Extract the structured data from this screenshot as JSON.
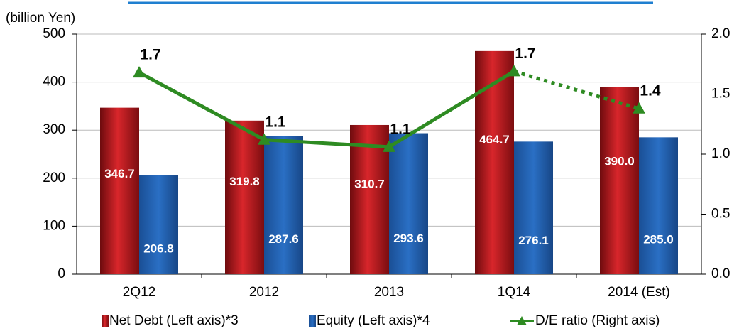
{
  "chart_data": {
    "type": "bar_line",
    "y_axis_label": "(billion Yen)",
    "categories": [
      "2Q12",
      "2012",
      "2013",
      "1Q14",
      "2014 (Est)"
    ],
    "series": [
      {
        "name": "Net Debt (Left axis)*3",
        "color": "#b5171c",
        "values": [
          346.7,
          319.8,
          310.7,
          464.7,
          390
        ],
        "value_labels": [
          "346.7",
          "319.8",
          "310.7",
          "464.7",
          "390.0"
        ]
      },
      {
        "name": "Equity (Left axis)*4",
        "color": "#1f5fae",
        "values": [
          206.8,
          287.6,
          293.6,
          276.1,
          285
        ],
        "value_labels": [
          "206.8",
          "287.6",
          "293.6",
          "276.1",
          "285.0"
        ]
      },
      {
        "name": "D/E ratio (Right axis)",
        "color": "#2e8b22",
        "axis": "y2",
        "values": [
          1.68,
          1.12,
          1.06,
          1.69,
          1.38
        ],
        "value_labels": [
          "1.7",
          "1.1",
          "1.1",
          "1.7",
          "1.4"
        ],
        "dotted_last_segment": true
      }
    ],
    "ylim": [
      0,
      500
    ],
    "yticks": [
      0,
      100,
      200,
      300,
      400,
      500
    ],
    "y2lim": [
      0,
      2
    ],
    "y2ticks": [
      {
        "value": 0,
        "label": "0.0"
      },
      {
        "value": 0.5,
        "label": "0.5"
      },
      {
        "value": 1,
        "label": "1.0"
      },
      {
        "value": 1.5,
        "label": "1.5"
      },
      {
        "value": 2,
        "label": "2.0"
      }
    ],
    "grid": true,
    "legend": "bottom"
  }
}
